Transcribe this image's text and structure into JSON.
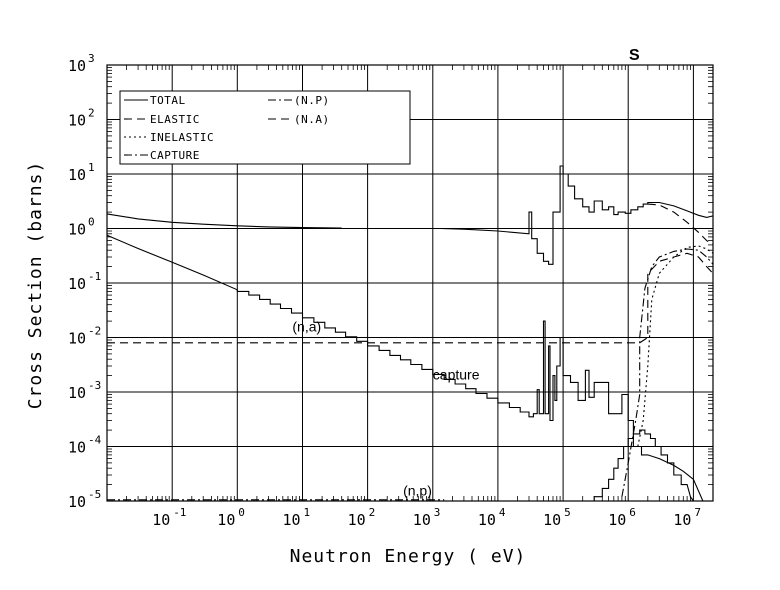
{
  "chart_data": {
    "type": "line",
    "element_label": "S",
    "xlabel": "Neutron Energy ( eV)",
    "ylabel": "Cross Section (barns)",
    "x_scale": "log",
    "y_scale": "log",
    "xlim": [
      0.01,
      20000000
    ],
    "ylim": [
      1e-05,
      1000
    ],
    "grid": true,
    "legend_placement": "top-left",
    "x_ticks": [
      {
        "value": 0.1,
        "base": "10",
        "exp": "-1"
      },
      {
        "value": 1,
        "base": "10",
        "exp": "0"
      },
      {
        "value": 10,
        "base": "10",
        "exp": "1"
      },
      {
        "value": 100,
        "base": "10",
        "exp": "2"
      },
      {
        "value": 1000,
        "base": "10",
        "exp": "3"
      },
      {
        "value": 10000,
        "base": "10",
        "exp": "4"
      },
      {
        "value": 100000,
        "base": "10",
        "exp": "5"
      },
      {
        "value": 1000000,
        "base": "10",
        "exp": "6"
      },
      {
        "value": 10000000,
        "base": "10",
        "exp": "7"
      }
    ],
    "y_ticks": [
      {
        "value": 1e-05,
        "base": "10",
        "exp": "-5"
      },
      {
        "value": 0.0001,
        "base": "10",
        "exp": "-4"
      },
      {
        "value": 0.001,
        "base": "10",
        "exp": "-3"
      },
      {
        "value": 0.01,
        "base": "10",
        "exp": "-2"
      },
      {
        "value": 0.1,
        "base": "10",
        "exp": "-1"
      },
      {
        "value": 1,
        "base": "10",
        "exp": "0"
      },
      {
        "value": 10,
        "base": "10",
        "exp": "1"
      },
      {
        "value": 100,
        "base": "10",
        "exp": "2"
      },
      {
        "value": 1000,
        "base": "10",
        "exp": "3"
      }
    ],
    "legend": [
      {
        "label": "TOTAL",
        "style": "solid"
      },
      {
        "label": "ELASTIC",
        "style": "dash"
      },
      {
        "label": "INELASTIC",
        "style": "dot"
      },
      {
        "label": "CAPTURE",
        "style": "dashdot"
      },
      {
        "label": "(N.P)",
        "style": "dashdot"
      },
      {
        "label": "(N.A)",
        "style": "dash"
      }
    ],
    "annotations": [
      {
        "text": "(n,a)",
        "x": 7,
        "y": 0.013
      },
      {
        "text": "capture",
        "x": 1000,
        "y": 0.0017
      },
      {
        "text": "(n,p)",
        "x": 350,
        "y": 1.25e-05
      }
    ],
    "series": [
      {
        "name": "TOTAL",
        "style": "solid",
        "points": [
          [
            0.01,
            1.85
          ],
          [
            0.03,
            1.5
          ],
          [
            0.1,
            1.3
          ],
          [
            0.3,
            1.2
          ],
          [
            1,
            1.12
          ],
          [
            3,
            1.07
          ],
          [
            10,
            1.04
          ],
          [
            40,
            1.02
          ],
          [
            40,
            null
          ],
          [
            1300,
            1.0
          ],
          [
            3000,
            0.97
          ],
          [
            10000,
            0.9
          ],
          [
            30000,
            0.8
          ],
          [
            30000,
            2.0
          ],
          [
            33000,
            2.0
          ],
          [
            33000,
            0.65
          ],
          [
            40000,
            0.65
          ],
          [
            40000,
            0.35
          ],
          [
            50000,
            0.35
          ],
          [
            50000,
            0.25
          ],
          [
            60000,
            0.25
          ],
          [
            60000,
            0.22
          ],
          [
            70000,
            0.22
          ],
          [
            70000,
            2.0
          ],
          [
            90000,
            2.0
          ],
          [
            90000,
            14
          ],
          [
            100000,
            14
          ],
          [
            100000,
            10
          ],
          [
            120000,
            10
          ],
          [
            120000,
            6
          ],
          [
            150000,
            6
          ],
          [
            150000,
            3.5
          ],
          [
            200000,
            3.5
          ],
          [
            200000,
            2.5
          ],
          [
            250000,
            2.5
          ],
          [
            250000,
            2.0
          ],
          [
            300000,
            2.0
          ],
          [
            300000,
            3.2
          ],
          [
            400000,
            3.2
          ],
          [
            400000,
            2.2
          ],
          [
            500000,
            2.2
          ],
          [
            500000,
            2.5
          ],
          [
            600000,
            2.5
          ],
          [
            600000,
            1.8
          ],
          [
            700000,
            1.8
          ],
          [
            700000,
            2.0
          ],
          [
            900000,
            2.0
          ],
          [
            900000,
            1.9
          ],
          [
            1100000,
            1.9
          ],
          [
            1100000,
            2.2
          ],
          [
            1400000,
            2.2
          ],
          [
            1400000,
            2.5
          ],
          [
            1700000,
            2.5
          ],
          [
            1700000,
            2.8
          ],
          [
            2000000,
            2.8
          ],
          [
            2000000,
            3.0
          ],
          [
            3000000,
            3.0
          ],
          [
            5000000,
            2.6
          ],
          [
            8000000,
            2.1
          ],
          [
            12000000,
            1.75
          ],
          [
            16000000,
            1.6
          ],
          [
            20000000,
            1.7
          ]
        ]
      },
      {
        "name": "ELASTIC",
        "style": "dash",
        "points": [
          [
            2000000,
            2.8
          ],
          [
            3000000,
            2.7
          ],
          [
            5000000,
            2.0
          ],
          [
            8000000,
            1.3
          ],
          [
            12000000,
            0.85
          ],
          [
            16000000,
            0.6
          ],
          [
            20000000,
            0.5
          ]
        ]
      },
      {
        "name": "CAPTURE",
        "style": "solid",
        "points": [
          [
            0.01,
            0.75
          ],
          [
            0.03,
            0.43
          ],
          [
            0.1,
            0.24
          ],
          [
            0.3,
            0.14
          ],
          [
            1,
            0.075
          ],
          [
            1,
            0.07
          ],
          [
            1.5,
            0.07
          ],
          [
            1.5,
            0.06
          ],
          [
            2.2,
            0.06
          ],
          [
            2.2,
            0.05
          ],
          [
            3.2,
            0.05
          ],
          [
            3.2,
            0.041
          ],
          [
            4.6,
            0.041
          ],
          [
            4.6,
            0.034
          ],
          [
            6.8,
            0.034
          ],
          [
            6.8,
            0.028
          ],
          [
            10,
            0.028
          ],
          [
            10,
            0.023
          ],
          [
            15,
            0.023
          ],
          [
            15,
            0.019
          ],
          [
            22,
            0.019
          ],
          [
            22,
            0.015
          ],
          [
            32,
            0.015
          ],
          [
            32,
            0.0125
          ],
          [
            46,
            0.0125
          ],
          [
            46,
            0.0103
          ],
          [
            68,
            0.0103
          ],
          [
            68,
            0.0085
          ],
          [
            100,
            0.0085
          ],
          [
            100,
            0.007
          ],
          [
            150,
            0.007
          ],
          [
            150,
            0.0058
          ],
          [
            220,
            0.0058
          ],
          [
            220,
            0.0047
          ],
          [
            320,
            0.0047
          ],
          [
            320,
            0.0039
          ],
          [
            460,
            0.0039
          ],
          [
            460,
            0.0032
          ],
          [
            680,
            0.0032
          ],
          [
            680,
            0.0026
          ],
          [
            1000,
            0.0026
          ],
          [
            1000,
            0.0021
          ],
          [
            1500,
            0.0021
          ],
          [
            1500,
            0.0017
          ],
          [
            2200,
            0.0017
          ],
          [
            2200,
            0.0014
          ],
          [
            3200,
            0.0014
          ],
          [
            3200,
            0.00115
          ],
          [
            4600,
            0.00115
          ],
          [
            4600,
            0.00094
          ],
          [
            6800,
            0.00094
          ],
          [
            6800,
            0.00077
          ],
          [
            10000,
            0.00077
          ],
          [
            10000,
            0.00063
          ],
          [
            15000,
            0.00063
          ],
          [
            15000,
            0.00052
          ],
          [
            22000,
            0.00052
          ],
          [
            22000,
            0.00043
          ],
          [
            30000,
            0.00043
          ],
          [
            30000,
            0.00035
          ],
          [
            35000,
            0.00035
          ],
          [
            35000,
            0.0004
          ],
          [
            40000,
            0.0004
          ],
          [
            40000,
            0.0011
          ],
          [
            43000,
            0.0011
          ],
          [
            43000,
            0.0004
          ],
          [
            50000,
            0.0004
          ],
          [
            50000,
            0.02
          ],
          [
            53000,
            0.02
          ],
          [
            53000,
            0.0004
          ],
          [
            60000,
            0.0004
          ],
          [
            60000,
            0.007
          ],
          [
            63000,
            0.007
          ],
          [
            63000,
            0.0003
          ],
          [
            70000,
            0.0003
          ],
          [
            70000,
            0.002
          ],
          [
            75000,
            0.002
          ],
          [
            75000,
            0.0007
          ],
          [
            80000,
            0.0007
          ],
          [
            80000,
            0.003
          ],
          [
            90000,
            0.003
          ],
          [
            90000,
            0.01
          ],
          [
            100000,
            0.01
          ],
          [
            100000,
            0.002
          ],
          [
            130000,
            0.002
          ],
          [
            130000,
            0.0015
          ],
          [
            170000,
            0.0015
          ],
          [
            170000,
            0.0007
          ],
          [
            220000,
            0.0007
          ],
          [
            220000,
            0.0025
          ],
          [
            250000,
            0.0025
          ],
          [
            250000,
            0.0008
          ],
          [
            300000,
            0.0008
          ],
          [
            300000,
            0.0015
          ],
          [
            500000,
            0.0015
          ],
          [
            500000,
            0.0004
          ],
          [
            800000,
            0.0004
          ],
          [
            800000,
            0.0009
          ],
          [
            1000000,
            0.0009
          ],
          [
            1000000,
            0.0003
          ],
          [
            1200000,
            0.0003
          ],
          [
            1200000,
            0.0001
          ],
          [
            1600000,
            0.0001
          ],
          [
            1600000,
            7e-05
          ],
          [
            2000000,
            7e-05
          ],
          [
            3000000,
            6e-05
          ],
          [
            5000000,
            4.5e-05
          ],
          [
            7000000,
            3.5e-05
          ],
          [
            10000000,
            2.5e-05
          ],
          [
            14000000,
            1e-05
          ]
        ]
      },
      {
        "name": "(N.A)",
        "style": "dash",
        "points": [
          [
            0.01,
            0.008
          ],
          [
            1500000,
            0.008
          ],
          [
            2000000,
            0.01
          ],
          [
            2000000,
            0.15
          ],
          [
            3000000,
            0.25
          ],
          [
            5000000,
            0.3
          ],
          [
            8000000,
            0.35
          ],
          [
            12000000,
            0.3
          ],
          [
            16000000,
            0.2
          ],
          [
            20000000,
            0.15
          ]
        ]
      },
      {
        "name": "(N.P)",
        "style": "dashdot",
        "points": [
          [
            0.01,
            1.05e-05
          ],
          [
            1500,
            1.05e-05
          ],
          [
            1500,
            null
          ],
          [
            800000,
            1.2e-05
          ],
          [
            1000000,
            5e-05
          ],
          [
            1300000,
            0.0003
          ],
          [
            1500000,
            0.0009
          ],
          [
            1500000,
            0.01
          ],
          [
            1800000,
            0.08
          ],
          [
            2300000,
            0.2
          ],
          [
            3000000,
            0.3
          ],
          [
            5000000,
            0.38
          ],
          [
            8000000,
            0.42
          ],
          [
            12000000,
            0.4
          ],
          [
            16000000,
            0.3
          ],
          [
            20000000,
            0.22
          ]
        ]
      },
      {
        "name": "INELASTIC",
        "style": "dot",
        "points": [
          [
            1400000,
            0.0001
          ],
          [
            1700000,
            0.0003
          ],
          [
            2000000,
            0.003
          ],
          [
            2300000,
            0.05
          ],
          [
            3000000,
            0.15
          ],
          [
            5000000,
            0.3
          ],
          [
            8000000,
            0.45
          ],
          [
            12000000,
            0.48
          ],
          [
            16000000,
            0.42
          ],
          [
            20000000,
            0.35
          ]
        ]
      },
      {
        "name": "(n,p) histogram",
        "style": "solid",
        "points": [
          [
            300000,
            1e-05
          ],
          [
            300000,
            1.2e-05
          ],
          [
            400000,
            1.2e-05
          ],
          [
            400000,
            1.7e-05
          ],
          [
            500000,
            1.7e-05
          ],
          [
            500000,
            2.5e-05
          ],
          [
            600000,
            2.5e-05
          ],
          [
            600000,
            4e-05
          ],
          [
            700000,
            4e-05
          ],
          [
            700000,
            6e-05
          ],
          [
            850000,
            6e-05
          ],
          [
            850000,
            0.0001
          ],
          [
            1000000,
            0.0001
          ],
          [
            1000000,
            0.00014
          ],
          [
            1200000,
            0.00014
          ],
          [
            1200000,
            0.00017
          ],
          [
            1500000,
            0.00017
          ],
          [
            1500000,
            0.0002
          ],
          [
            1800000,
            0.0002
          ],
          [
            1800000,
            0.00017
          ],
          [
            2200000,
            0.00017
          ],
          [
            2200000,
            0.00014
          ],
          [
            2600000,
            0.00014
          ],
          [
            2600000,
            0.0001
          ],
          [
            3200000,
            0.0001
          ],
          [
            3200000,
            7e-05
          ],
          [
            4000000,
            7e-05
          ],
          [
            4000000,
            5e-05
          ],
          [
            5000000,
            5e-05
          ],
          [
            5000000,
            3e-05
          ],
          [
            6500000,
            3e-05
          ],
          [
            6500000,
            2e-05
          ],
          [
            8000000,
            2e-05
          ],
          [
            9000000,
            1.2e-05
          ],
          [
            10000000,
            8e-06
          ]
        ]
      }
    ]
  }
}
